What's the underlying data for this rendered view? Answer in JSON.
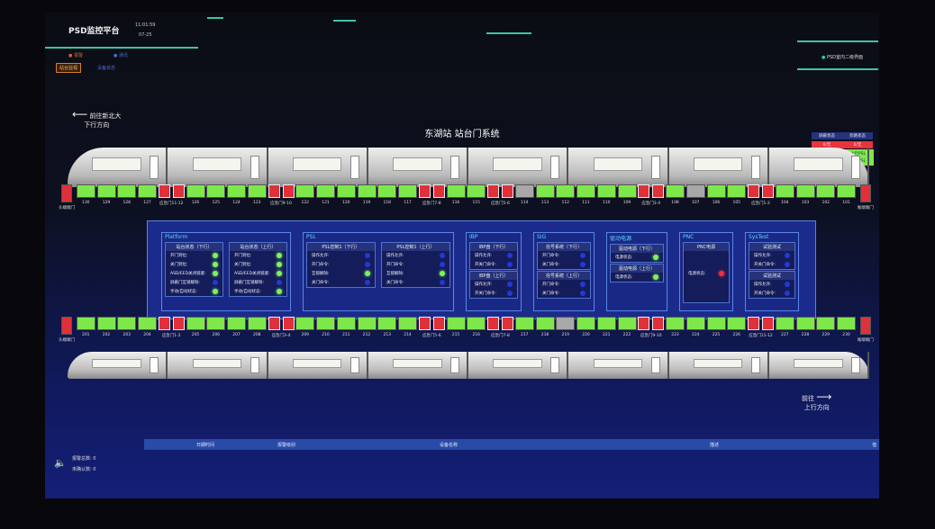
{
  "header": {
    "title": "PSD监控平台",
    "time": "11:01:59",
    "date": "07-25",
    "alarm_label": "报警",
    "comm_label": "通讯",
    "btn_monitor": "站台监视",
    "btn_device": "设备状态",
    "right_title": "PSD室内二级界面"
  },
  "directions": {
    "down_dest": "前往新北大",
    "down_label": "下行方向",
    "up_dest": "前往",
    "up_label": "上行方向"
  },
  "station_title": "东湖站  站台门系统",
  "status_box": {
    "h1": "屏蔽状态",
    "h2": "旁路状态",
    "v1": "0/无",
    "v2": "0/无",
    "v3": "上行PSL",
    "v4": "下行PSL",
    "colors": {
      "red": "#e8343c",
      "green": "#7ee84a"
    }
  },
  "top_row": {
    "end_left": "头端端门",
    "end_right": "尾端端门",
    "doors": [
      {
        "n": "130",
        "s": "green"
      },
      {
        "n": "129",
        "s": "green"
      },
      {
        "n": "128",
        "s": "green"
      },
      {
        "n": "127",
        "s": "green"
      },
      {
        "pair": "应急门11-12"
      },
      {
        "n": "126",
        "s": "green"
      },
      {
        "n": "125",
        "s": "green"
      },
      {
        "n": "124",
        "s": "green"
      },
      {
        "n": "123",
        "s": "green"
      },
      {
        "pair": "应急门9-10"
      },
      {
        "n": "122",
        "s": "green"
      },
      {
        "n": "121",
        "s": "green"
      },
      {
        "n": "120",
        "s": "green"
      },
      {
        "n": "119",
        "s": "green"
      },
      {
        "n": "118",
        "s": "green"
      },
      {
        "n": "117",
        "s": "green"
      },
      {
        "pair": "应急门7-8"
      },
      {
        "n": "116",
        "s": "green"
      },
      {
        "n": "115",
        "s": "green"
      },
      {
        "pair": "应急门5-6"
      },
      {
        "n": "114",
        "s": "gray"
      },
      {
        "n": "113",
        "s": "green"
      },
      {
        "n": "112",
        "s": "green"
      },
      {
        "n": "111",
        "s": "green"
      },
      {
        "n": "110",
        "s": "green"
      },
      {
        "n": "109",
        "s": "green"
      },
      {
        "pair": "应急门3-4"
      },
      {
        "n": "108",
        "s": "green"
      },
      {
        "n": "107",
        "s": "gray"
      },
      {
        "n": "106",
        "s": "green"
      },
      {
        "n": "105",
        "s": "green"
      },
      {
        "pair": "应急门1-2"
      },
      {
        "n": "104",
        "s": "green"
      },
      {
        "n": "103",
        "s": "green"
      },
      {
        "n": "102",
        "s": "green"
      },
      {
        "n": "101",
        "s": "green"
      }
    ]
  },
  "bottom_row": {
    "end_left": "头端端门",
    "end_right": "尾端端门",
    "doors": [
      {
        "n": "201",
        "s": "green"
      },
      {
        "n": "202",
        "s": "green"
      },
      {
        "n": "203",
        "s": "green"
      },
      {
        "n": "204",
        "s": "green"
      },
      {
        "pair": "应急门1-2"
      },
      {
        "n": "205",
        "s": "green"
      },
      {
        "n": "206",
        "s": "green"
      },
      {
        "n": "207",
        "s": "green"
      },
      {
        "n": "208",
        "s": "green"
      },
      {
        "pair": "应急门3-4"
      },
      {
        "n": "209",
        "s": "green"
      },
      {
        "n": "210",
        "s": "green"
      },
      {
        "n": "211",
        "s": "green"
      },
      {
        "n": "212",
        "s": "green"
      },
      {
        "n": "213",
        "s": "green"
      },
      {
        "n": "214",
        "s": "green"
      },
      {
        "pair": "应急门5-6"
      },
      {
        "n": "215",
        "s": "green"
      },
      {
        "n": "216",
        "s": "green"
      },
      {
        "pair": "应急门7-8"
      },
      {
        "n": "217",
        "s": "green"
      },
      {
        "n": "218",
        "s": "green"
      },
      {
        "n": "219",
        "s": "gray"
      },
      {
        "n": "220",
        "s": "green"
      },
      {
        "n": "221",
        "s": "green"
      },
      {
        "n": "222",
        "s": "green"
      },
      {
        "pair": "应急门9-10"
      },
      {
        "n": "223",
        "s": "green"
      },
      {
        "n": "224",
        "s": "green"
      },
      {
        "n": "225",
        "s": "green"
      },
      {
        "n": "226",
        "s": "green"
      },
      {
        "pair": "应急门11-12"
      },
      {
        "n": "227",
        "s": "green"
      },
      {
        "n": "228",
        "s": "green"
      },
      {
        "n": "229",
        "s": "green"
      },
      {
        "n": "230",
        "s": "green"
      }
    ]
  },
  "panels": [
    {
      "title": "Platform",
      "boxes": [
        {
          "head": "站台状态（下行）",
          "rows": [
            [
              "开门到位:",
              "green"
            ],
            [
              "关门到位:",
              "green"
            ],
            [
              "ASD/EED关闭锁紧:",
              "green"
            ],
            [
              "屏蔽门互锁解除:",
              "blue"
            ],
            [
              "手动/自动状态:",
              "green"
            ]
          ]
        },
        {
          "head": "站台状态（上行）",
          "rows": [
            [
              "开门到位:",
              "green"
            ],
            [
              "关门到位:",
              "green"
            ],
            [
              "ASD/EED关闭锁紧:",
              "green"
            ],
            [
              "屏蔽门互锁解除:",
              "blue"
            ],
            [
              "手动/自动状态:",
              "green"
            ]
          ]
        }
      ]
    },
    {
      "title": "PSL",
      "boxes": [
        {
          "head": "PSL控制1（下行）",
          "rows": [
            [
              "操作允许:",
              "blue"
            ],
            [
              "开门命令:",
              "blue"
            ],
            [
              "互锁解除:",
              "green"
            ],
            [
              "关门命令:",
              "blue"
            ]
          ]
        },
        {
          "head": "PSL控制1（上行）",
          "rows": [
            [
              "操作允许:",
              "blue"
            ],
            [
              "开门命令:",
              "blue"
            ],
            [
              "互锁解除:",
              "green"
            ],
            [
              "关门命令:",
              "blue"
            ]
          ]
        }
      ]
    },
    {
      "title": "IBP",
      "boxes": [
        {
          "head": "IBP盘（下行）",
          "rows": [
            [
              "操作允许:",
              "blue"
            ],
            [
              "开关门命令:",
              "blue"
            ]
          ]
        },
        {
          "head": "IBP盘（上行）",
          "rows": [
            [
              "操作允许:",
              "blue"
            ],
            [
              "开关门命令:",
              "blue"
            ]
          ]
        }
      ]
    },
    {
      "title": "SIG",
      "boxes": [
        {
          "head": "信号系统（下行）",
          "rows": [
            [
              "开门命令:",
              "blue"
            ],
            [
              "关门命令:",
              "blue"
            ]
          ]
        },
        {
          "head": "信号系统（上行）",
          "rows": [
            [
              "开门命令:",
              "blue"
            ],
            [
              "关门命令:",
              "blue"
            ]
          ]
        }
      ]
    },
    {
      "title": "驱动电源",
      "boxes": [
        {
          "head": "驱动电源（下行）",
          "rows": [
            [
              "电源状态:",
              "green"
            ]
          ]
        },
        {
          "head": "驱动电源（上行）",
          "rows": [
            [
              "电源状态:",
              "green"
            ]
          ]
        }
      ]
    },
    {
      "title": "PNC",
      "boxes": [
        {
          "head": "PNC电源",
          "rows": [
            [
              "电源状态:",
              "red"
            ]
          ]
        }
      ]
    },
    {
      "title": "SysTest",
      "boxes": [
        {
          "head": "试验测试",
          "rows": [
            [
              "操作允许:",
              "blue"
            ],
            [
              "开关门命令:",
              "blue"
            ]
          ]
        },
        {
          "head": "试验测试",
          "rows": [
            [
              "操作允许:",
              "blue"
            ],
            [
              "开关门命令:",
              "blue"
            ]
          ]
        }
      ]
    }
  ],
  "alarms": {
    "total_label": "报警总数:",
    "total": "0",
    "unack_label": "未确认数:",
    "unack": "0",
    "columns": [
      "日期时间",
      "报警级别",
      "设备名称",
      "描述",
      "值"
    ]
  }
}
